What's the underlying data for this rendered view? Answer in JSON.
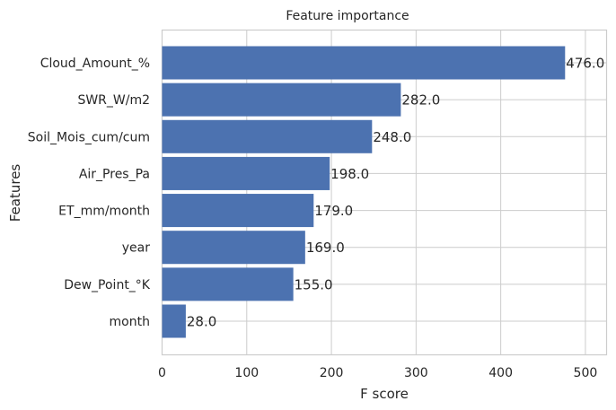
{
  "chart_data": {
    "type": "bar",
    "orientation": "horizontal",
    "title": "Feature importance",
    "xlabel": "F score",
    "ylabel": "Features",
    "xlim": [
      0,
      525
    ],
    "xticks": [
      "0",
      "100",
      "200",
      "300",
      "400",
      "500"
    ],
    "grid": true,
    "bar_color": "#4c72b0",
    "categories": [
      "Cloud_Amount_%",
      "SWR_W/m2",
      "Soil_Mois_cum/cum",
      "Air_Pres_Pa",
      "ET_mm/month",
      "year",
      "Dew_Point_°K",
      "month"
    ],
    "values": [
      476,
      282,
      248,
      198,
      179,
      169,
      155,
      28
    ],
    "data_labels": [
      "476.0",
      "282.0",
      "248.0",
      "198.0",
      "179.0",
      "169.0",
      "155.0",
      "28.0"
    ]
  }
}
